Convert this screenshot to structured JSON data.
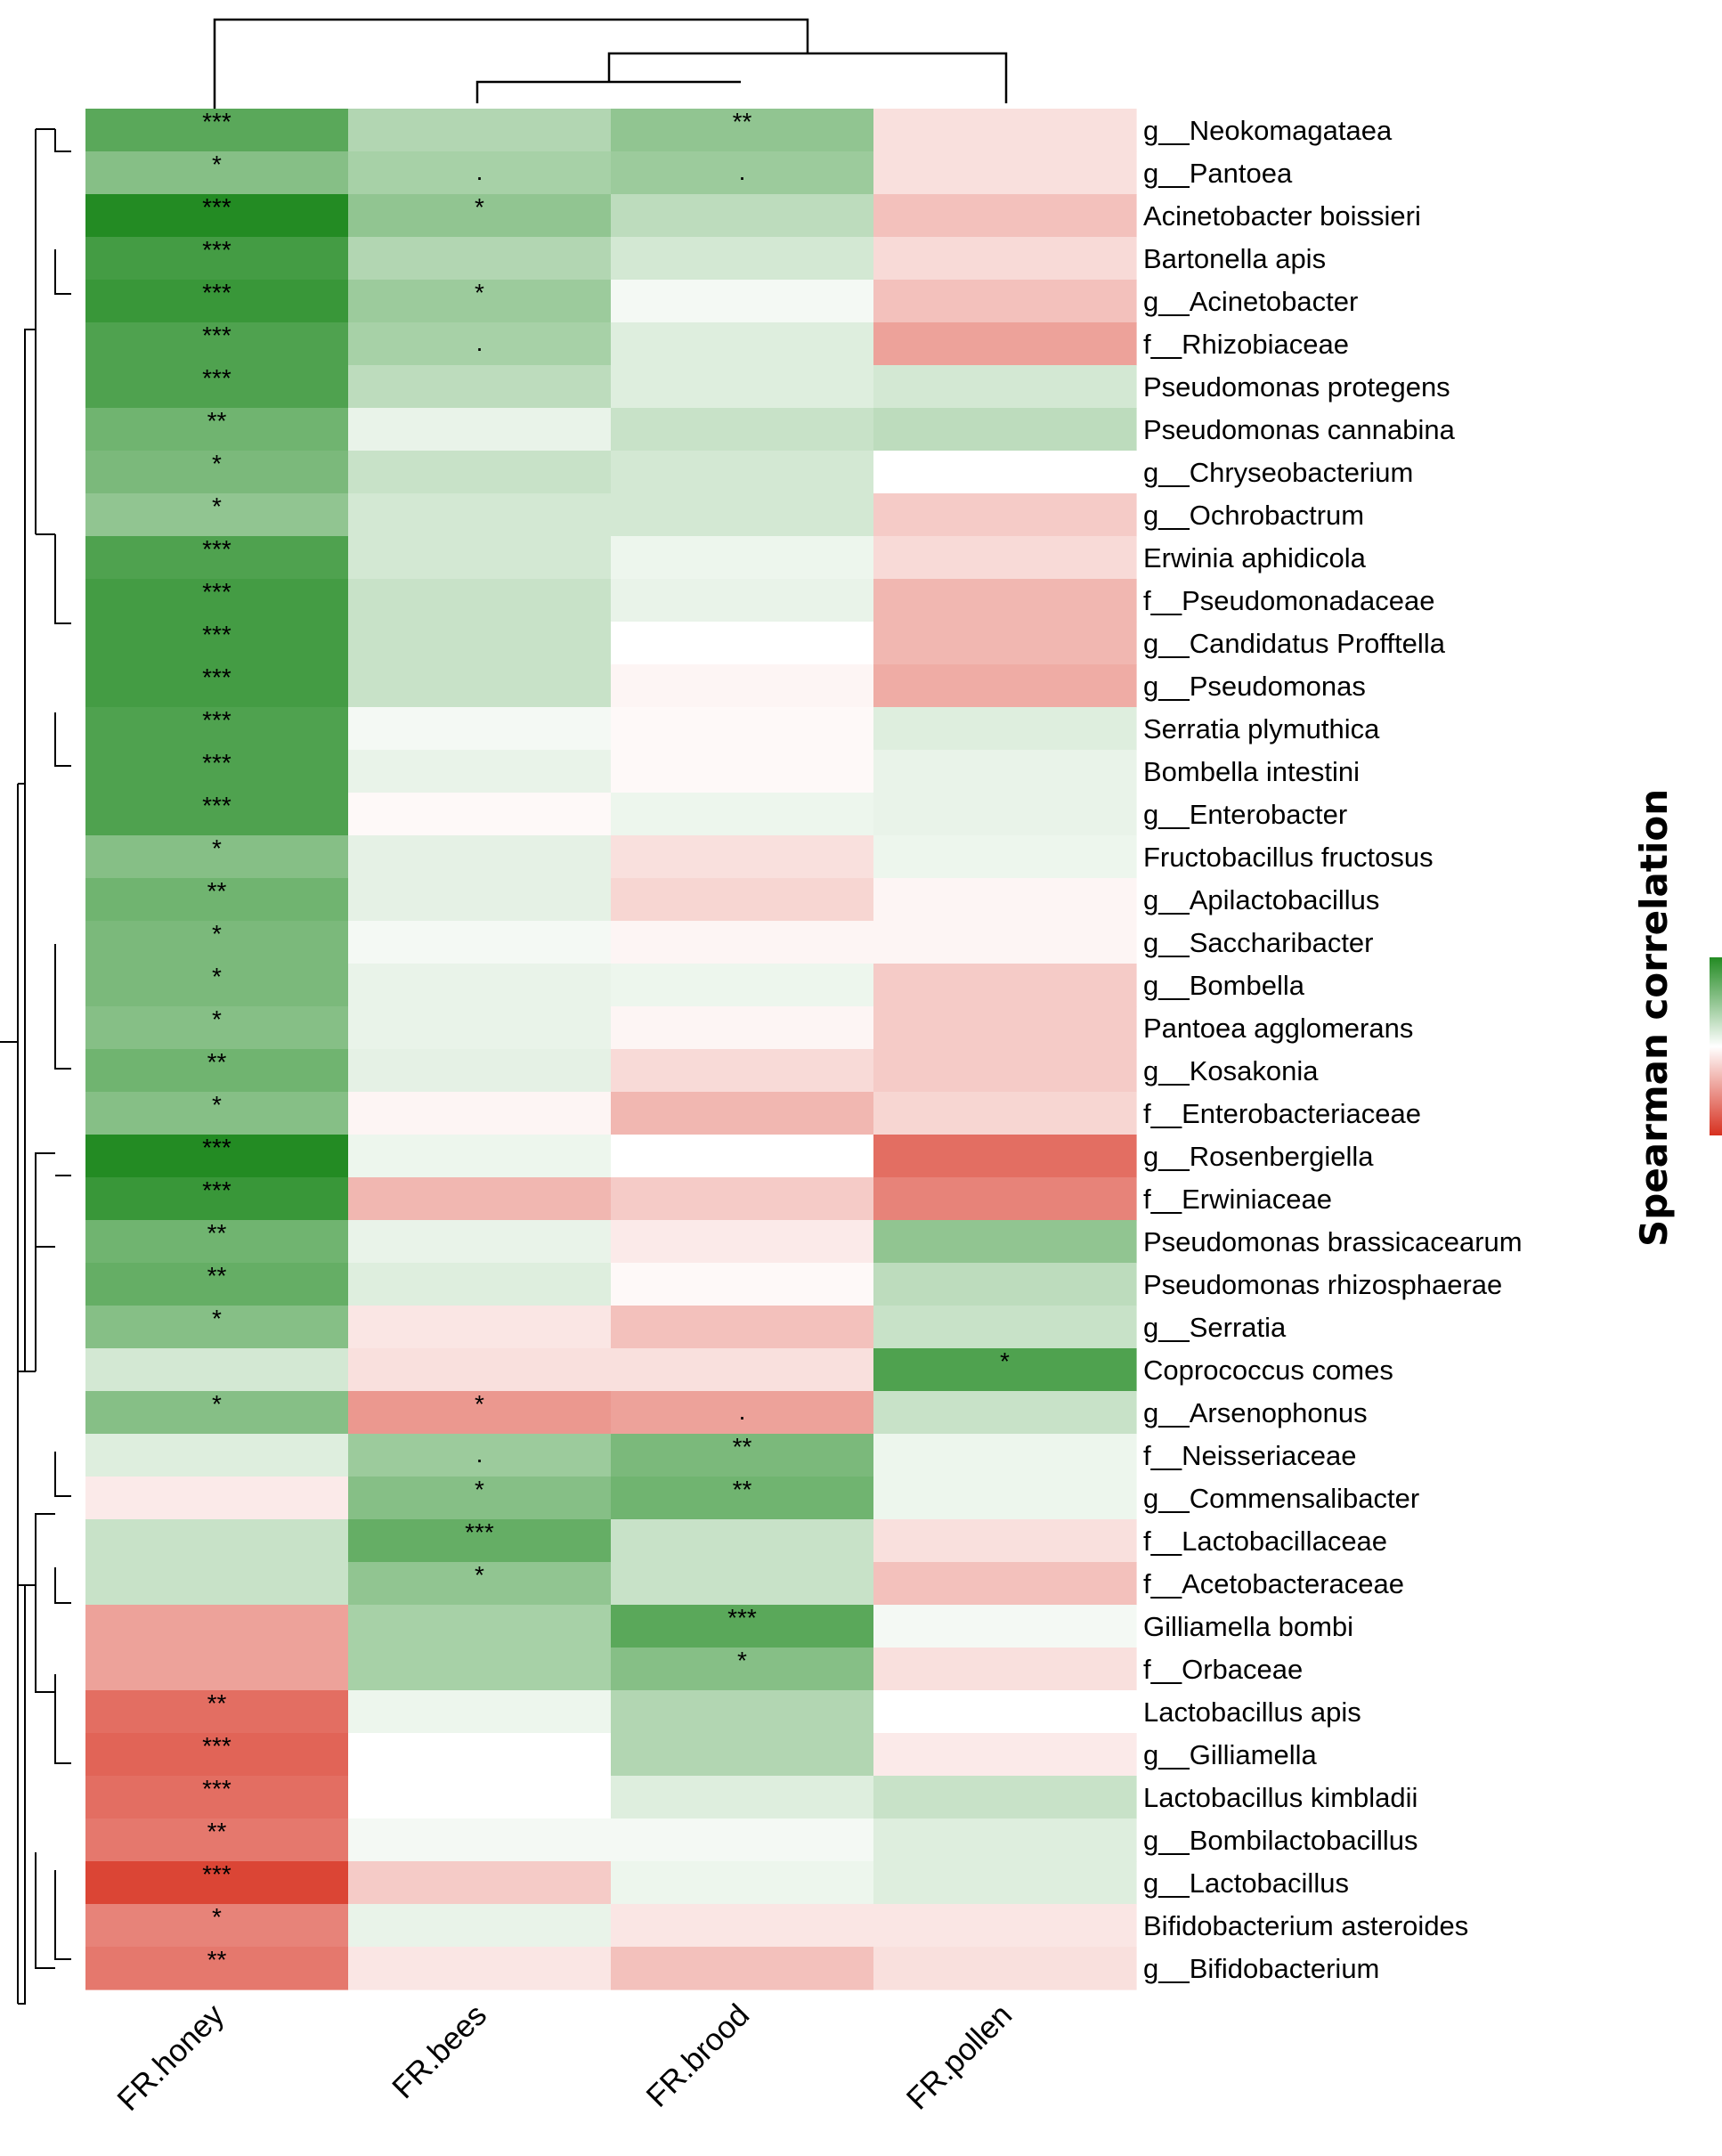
{
  "chart_data": {
    "type": "heatmap",
    "legend_title": "Spearman correlation",
    "color_scale": {
      "low": "#d7301f",
      "mid": "#ffffff",
      "high": "#238b23",
      "range": [
        -1,
        1
      ]
    },
    "columns": [
      "FR.honey",
      "FR.bees",
      "FR.brood",
      "FR.pollen"
    ],
    "rows": [
      "g__Neokomagataea",
      "g__Pantoea",
      "Acinetobacter boissieri",
      "Bartonella apis",
      "g__Acinetobacter",
      "f__Rhizobiaceae",
      "Pseudomonas protegens",
      "Pseudomonas cannabina",
      "g__Chryseobacterium",
      "g__Ochrobactrum",
      "Erwinia aphidicola",
      "f__Pseudomonadaceae",
      "g__Candidatus Profftella",
      "g__Pseudomonas",
      "Serratia plymuthica",
      "Bombella intestini",
      "g__Enterobacter",
      "Fructobacillus fructosus",
      "g__Apilactobacillus",
      "g__Saccharibacter",
      "g__Bombella",
      "Pantoea agglomerans",
      "g__Kosakonia",
      "f__Enterobacteriaceae",
      "g__Rosenbergiella",
      "f__Erwiniaceae",
      "Pseudomonas brassicacearum",
      "Pseudomonas rhizosphaerae",
      "g__Serratia",
      "Coprococcus comes",
      "g__Arsenophonus",
      "f__Neisseriaceae",
      "g__Commensalibacter",
      "f__Lactobacillaceae",
      "f__Acetobacteraceae",
      "Gilliamella bombi",
      "f__Orbaceae",
      "Lactobacillus apis",
      "g__Gilliamella",
      "Lactobacillus kimbladii",
      "g__Bombilactobacillus",
      "g__Lactobacillus",
      "Bifidobacterium asteroides",
      "g__Bifidobacterium"
    ],
    "values": [
      [
        0.75,
        0.35,
        0.5,
        -0.15
      ],
      [
        0.55,
        0.4,
        0.45,
        -0.15
      ],
      [
        1.0,
        0.5,
        0.3,
        -0.3
      ],
      [
        0.85,
        0.35,
        0.2,
        -0.18
      ],
      [
        0.9,
        0.45,
        0.05,
        -0.3
      ],
      [
        0.8,
        0.4,
        0.15,
        -0.45
      ],
      [
        0.8,
        0.3,
        0.15,
        0.2
      ],
      [
        0.65,
        0.1,
        0.25,
        0.3
      ],
      [
        0.6,
        0.25,
        0.2,
        0.0
      ],
      [
        0.5,
        0.2,
        0.2,
        -0.25
      ],
      [
        0.8,
        0.2,
        0.08,
        -0.18
      ],
      [
        0.85,
        0.25,
        0.1,
        -0.35
      ],
      [
        0.85,
        0.25,
        0.0,
        -0.35
      ],
      [
        0.85,
        0.25,
        -0.05,
        -0.4
      ],
      [
        0.8,
        0.05,
        -0.03,
        0.15
      ],
      [
        0.8,
        0.1,
        -0.03,
        0.1
      ],
      [
        0.8,
        -0.03,
        0.08,
        0.1
      ],
      [
        0.55,
        0.12,
        -0.15,
        0.08
      ],
      [
        0.65,
        0.12,
        -0.2,
        -0.05
      ],
      [
        0.6,
        0.05,
        -0.05,
        -0.05
      ],
      [
        0.6,
        0.1,
        0.08,
        -0.25
      ],
      [
        0.55,
        0.1,
        -0.05,
        -0.25
      ],
      [
        0.65,
        0.12,
        -0.18,
        -0.25
      ],
      [
        0.55,
        -0.05,
        -0.35,
        -0.2
      ],
      [
        1.0,
        0.08,
        0.0,
        -0.7
      ],
      [
        0.9,
        -0.35,
        -0.25,
        -0.6
      ],
      [
        0.65,
        0.1,
        -0.1,
        0.5
      ],
      [
        0.7,
        0.15,
        -0.03,
        0.3
      ],
      [
        0.55,
        -0.12,
        -0.3,
        0.25
      ],
      [
        0.2,
        -0.15,
        -0.15,
        0.8
      ],
      [
        0.55,
        -0.5,
        -0.45,
        0.25
      ],
      [
        0.15,
        0.45,
        0.6,
        0.08
      ],
      [
        -0.1,
        0.55,
        0.65,
        0.08
      ],
      [
        0.25,
        0.7,
        0.25,
        -0.15
      ],
      [
        0.25,
        0.5,
        0.25,
        -0.3
      ],
      [
        -0.45,
        0.4,
        0.75,
        0.05
      ],
      [
        -0.45,
        0.4,
        0.55,
        -0.15
      ],
      [
        -0.7,
        0.08,
        0.35,
        0.0
      ],
      [
        -0.75,
        0.0,
        0.35,
        -0.1
      ],
      [
        -0.7,
        0.0,
        0.15,
        0.25
      ],
      [
        -0.65,
        0.05,
        0.05,
        0.15
      ],
      [
        -0.9,
        -0.25,
        0.08,
        0.15
      ],
      [
        -0.6,
        0.1,
        -0.12,
        -0.12
      ],
      [
        -0.65,
        -0.12,
        -0.3,
        -0.15
      ]
    ],
    "significance": [
      [
        "***",
        "",
        "**",
        ""
      ],
      [
        "*",
        ".",
        ".",
        ""
      ],
      [
        "***",
        "*",
        "",
        ""
      ],
      [
        "***",
        "",
        "",
        ""
      ],
      [
        "***",
        "*",
        "",
        ""
      ],
      [
        "***",
        ".",
        "",
        ""
      ],
      [
        "***",
        "",
        "",
        ""
      ],
      [
        "**",
        "",
        "",
        ""
      ],
      [
        "*",
        "",
        "",
        ""
      ],
      [
        "*",
        "",
        "",
        ""
      ],
      [
        "***",
        "",
        "",
        ""
      ],
      [
        "***",
        "",
        "",
        ""
      ],
      [
        "***",
        "",
        "",
        ""
      ],
      [
        "***",
        "",
        "",
        ""
      ],
      [
        "***",
        "",
        "",
        ""
      ],
      [
        "***",
        "",
        "",
        ""
      ],
      [
        "***",
        "",
        "",
        ""
      ],
      [
        "*",
        "",
        "",
        ""
      ],
      [
        "**",
        "",
        "",
        ""
      ],
      [
        "*",
        "",
        "",
        ""
      ],
      [
        "*",
        "",
        "",
        ""
      ],
      [
        "*",
        "",
        "",
        ""
      ],
      [
        "**",
        "",
        "",
        ""
      ],
      [
        "*",
        "",
        "",
        ""
      ],
      [
        "***",
        "",
        "",
        ""
      ],
      [
        "***",
        "",
        "",
        ""
      ],
      [
        "**",
        "",
        "",
        ""
      ],
      [
        "**",
        "",
        "",
        ""
      ],
      [
        "*",
        "",
        "",
        ""
      ],
      [
        "",
        "",
        "",
        "*"
      ],
      [
        "*",
        "*",
        ".",
        ""
      ],
      [
        "",
        ".",
        "**",
        ""
      ],
      [
        "",
        "*",
        "**",
        ""
      ],
      [
        "",
        "***",
        "",
        ""
      ],
      [
        "",
        "*",
        "",
        ""
      ],
      [
        "",
        "",
        "***",
        ""
      ],
      [
        "",
        "",
        "*",
        ""
      ],
      [
        "**",
        "",
        "",
        ""
      ],
      [
        "***",
        "",
        "",
        ""
      ],
      [
        "***",
        "",
        "",
        ""
      ],
      [
        "**",
        "",
        "",
        ""
      ],
      [
        "***",
        "",
        "",
        ""
      ],
      [
        "*",
        "",
        "",
        ""
      ],
      [
        "**",
        "",
        "",
        ""
      ]
    ]
  }
}
